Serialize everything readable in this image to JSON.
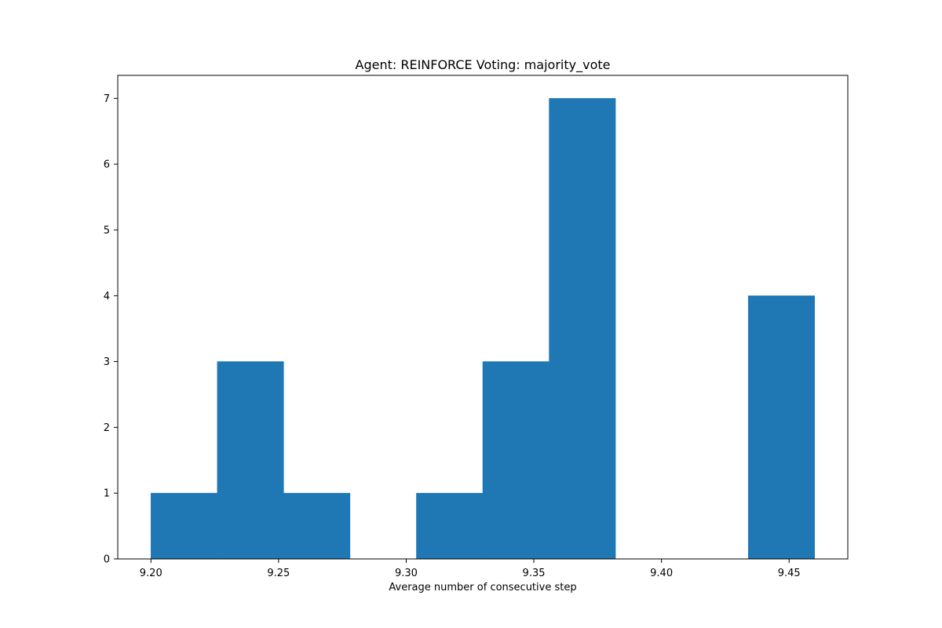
{
  "chart_data": {
    "type": "bar",
    "title": "Agent: REINFORCE Voting: majority_vote",
    "xlabel": "Average number of consecutive step",
    "ylabel": "",
    "xlim": [
      9.187,
      9.473
    ],
    "ylim": [
      0,
      7.35
    ],
    "xticks": [
      "9.20",
      "9.25",
      "9.30",
      "9.35",
      "9.40",
      "9.45"
    ],
    "yticks": [
      "0",
      "1",
      "2",
      "3",
      "4",
      "5",
      "6",
      "7"
    ],
    "bin_edges": [
      9.2,
      9.226,
      9.252,
      9.278,
      9.304,
      9.33,
      9.356,
      9.382,
      9.408,
      9.434,
      9.46
    ],
    "values": [
      1,
      3,
      1,
      0,
      1,
      3,
      7,
      0,
      0,
      4
    ],
    "bar_color": "#1f77b4",
    "grid": false,
    "legend": "none"
  }
}
